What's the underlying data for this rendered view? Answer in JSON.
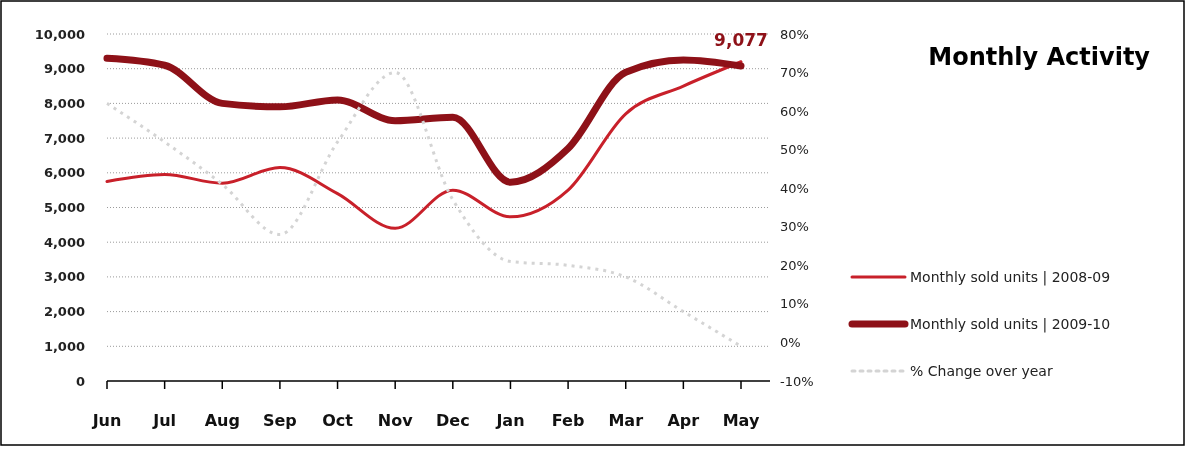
{
  "chart_data": {
    "type": "line",
    "title": "Monthly Activity",
    "categories": [
      "Jun",
      "Jul",
      "Aug",
      "Sep",
      "Oct",
      "Nov",
      "Dec",
      "Jan",
      "Feb",
      "Mar",
      "Apr",
      "May"
    ],
    "series": [
      {
        "name": "Monthly sold units | 2008-09",
        "color": "#c8202a",
        "values": [
          5750,
          5950,
          5700,
          6150,
          5400,
          4400,
          5500,
          4730,
          5500,
          7700,
          8500,
          9200
        ]
      },
      {
        "name": "Monthly sold units | 2009-10",
        "color": "#8e1118",
        "values": [
          9300,
          9100,
          8000,
          7900,
          8100,
          7500,
          7600,
          5730,
          6700,
          8900,
          9250,
          9077
        ]
      },
      {
        "name": "% Change over year",
        "color": "#d4d4d4",
        "axis": "y2",
        "line_style": "dotted",
        "values": [
          62,
          52,
          41,
          28,
          52,
          70,
          37,
          21,
          20,
          17,
          8,
          -1
        ]
      }
    ],
    "ylim": [
      0,
      10000
    ],
    "yticks": [
      {
        "value": 0,
        "label": "0"
      },
      {
        "value": 1000,
        "label": "1,000"
      },
      {
        "value": 2000,
        "label": "2,000"
      },
      {
        "value": 3000,
        "label": "3,000"
      },
      {
        "value": 4000,
        "label": "4,000"
      },
      {
        "value": 5000,
        "label": "5,000"
      },
      {
        "value": 6000,
        "label": "6,000"
      },
      {
        "value": 7000,
        "label": "7,000"
      },
      {
        "value": 8000,
        "label": "8,000"
      },
      {
        "value": 9000,
        "label": "9,000"
      },
      {
        "value": 10000,
        "label": "10,000"
      }
    ],
    "y2lim": [
      -10,
      80
    ],
    "y2ticks": [
      {
        "value": -10,
        "label": "-10%"
      },
      {
        "value": 0,
        "label": "0%"
      },
      {
        "value": 10,
        "label": "10%"
      },
      {
        "value": 20,
        "label": "20%"
      },
      {
        "value": 30,
        "label": "30%"
      },
      {
        "value": 40,
        "label": "40%"
      },
      {
        "value": 50,
        "label": "50%"
      },
      {
        "value": 60,
        "label": "60%"
      },
      {
        "value": 70,
        "label": "70%"
      },
      {
        "value": 80,
        "label": "80%"
      }
    ],
    "grid": "y",
    "legend": "right",
    "annotations": [
      {
        "text": "9,077",
        "x": "May",
        "y": 9077
      }
    ]
  }
}
